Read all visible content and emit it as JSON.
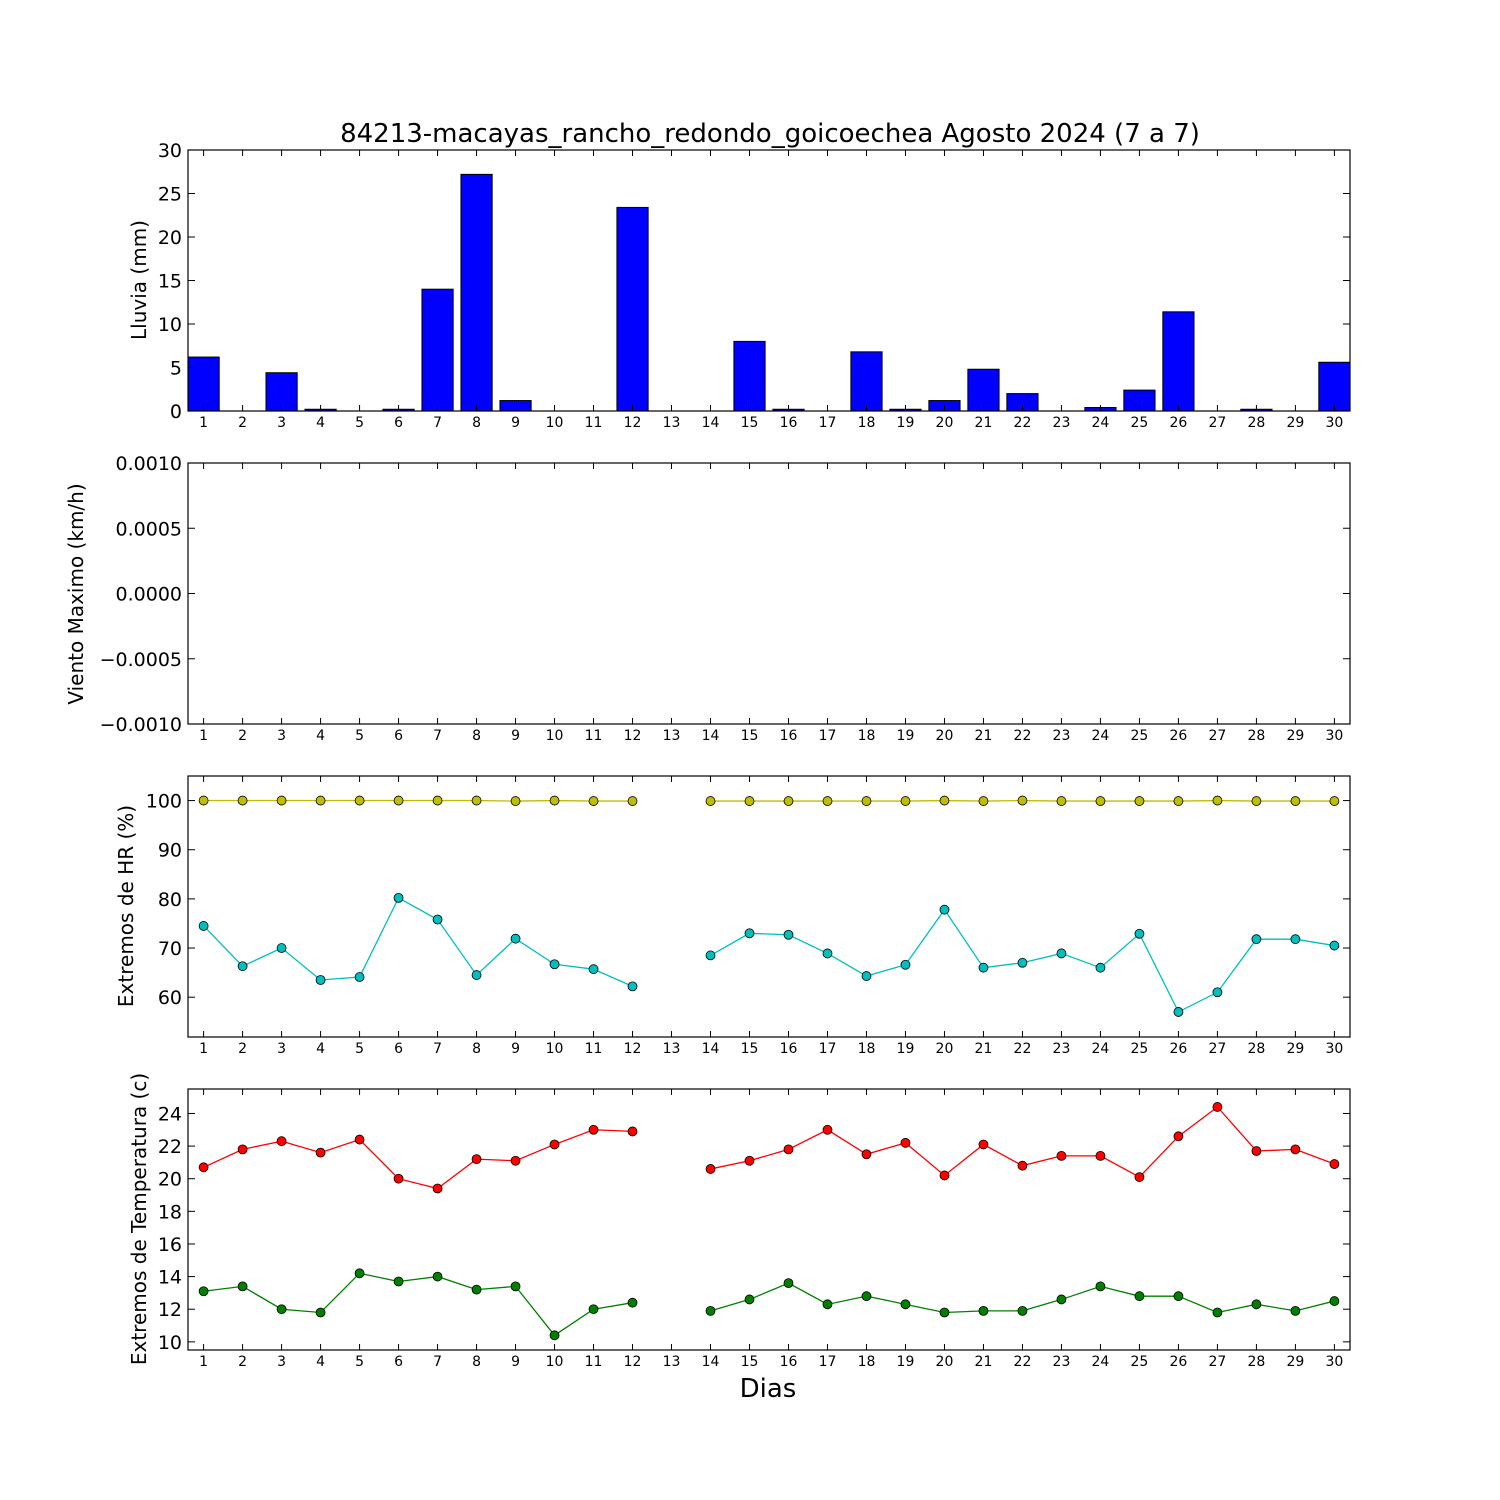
{
  "title": "84213-macayas_rancho_redondo_goicoechea Agosto 2024  (7 a 7)",
  "xlabel": "Dias",
  "chart_data": [
    {
      "type": "bar",
      "ylabel": "Lluvia (mm)",
      "ylim": [
        0,
        30
      ],
      "yticks": [
        "0",
        "5",
        "10",
        "15",
        "20",
        "25",
        "30"
      ],
      "x": [
        1,
        2,
        3,
        4,
        5,
        6,
        7,
        8,
        9,
        10,
        11,
        12,
        13,
        14,
        15,
        16,
        17,
        18,
        19,
        20,
        21,
        22,
        23,
        24,
        25,
        26,
        27,
        28,
        29,
        30
      ],
      "values": [
        6.2,
        0,
        4.4,
        0.2,
        0,
        0.2,
        14.0,
        27.2,
        1.2,
        0,
        0,
        23.4,
        0,
        0,
        8.0,
        0.2,
        0,
        6.8,
        0.2,
        1.2,
        4.8,
        2.0,
        0,
        0.4,
        2.4,
        11.4,
        0,
        0.2,
        0,
        5.6
      ],
      "color": "#0000ff"
    },
    {
      "type": "line",
      "ylabel": "Viento Maximo (km/h)",
      "ylim": [
        -0.001,
        0.001
      ],
      "yticks": [
        "−0.0010",
        "−0.0005",
        "0.0000",
        "0.0005",
        "0.0010"
      ],
      "x": [
        1,
        2,
        3,
        4,
        5,
        6,
        7,
        8,
        9,
        10,
        11,
        12,
        13,
        14,
        15,
        16,
        17,
        18,
        19,
        20,
        21,
        22,
        23,
        24,
        25,
        26,
        27,
        28,
        29,
        30
      ],
      "series": []
    },
    {
      "type": "line",
      "ylabel": "Extremos de HR (%)",
      "ylim": [
        51.9,
        105
      ],
      "yticks": [
        "60",
        "70",
        "80",
        "90",
        "100"
      ],
      "ytick_values": [
        60,
        70,
        80,
        90,
        100
      ],
      "x": [
        1,
        2,
        3,
        4,
        5,
        6,
        7,
        8,
        9,
        10,
        11,
        12,
        13,
        14,
        15,
        16,
        17,
        18,
        19,
        20,
        21,
        22,
        23,
        24,
        25,
        26,
        27,
        28,
        29,
        30
      ],
      "series": [
        {
          "color": "#bfbf00",
          "values": [
            100,
            100,
            100,
            100,
            100,
            100,
            100,
            100,
            99.9,
            100,
            99.9,
            99.9,
            null,
            99.9,
            99.9,
            99.9,
            99.9,
            99.9,
            99.9,
            100,
            99.9,
            100,
            99.9,
            99.9,
            99.9,
            99.9,
            100,
            99.9,
            99.9,
            99.9
          ]
        },
        {
          "color": "#00bfbf",
          "values": [
            74.5,
            66.3,
            70.0,
            63.5,
            64.1,
            80.2,
            75.8,
            64.5,
            71.9,
            66.7,
            65.7,
            62.2,
            null,
            68.5,
            73.0,
            72.7,
            68.9,
            64.3,
            66.6,
            77.8,
            66.0,
            67.0,
            68.9,
            66.0,
            72.9,
            57.0,
            61.0,
            71.8,
            71.8,
            70.5
          ]
        }
      ]
    },
    {
      "type": "line",
      "ylabel": "Extremos de Temperatura (c)",
      "ylim": [
        9.5,
        25.5
      ],
      "yticks": [
        "10",
        "12",
        "14",
        "16",
        "18",
        "20",
        "22",
        "24"
      ],
      "ytick_values": [
        10,
        12,
        14,
        16,
        18,
        20,
        22,
        24
      ],
      "x": [
        1,
        2,
        3,
        4,
        5,
        6,
        7,
        8,
        9,
        10,
        11,
        12,
        13,
        14,
        15,
        16,
        17,
        18,
        19,
        20,
        21,
        22,
        23,
        24,
        25,
        26,
        27,
        28,
        29,
        30
      ],
      "series": [
        {
          "color": "#ff0000",
          "values": [
            20.7,
            21.8,
            22.3,
            21.6,
            22.4,
            20.0,
            19.4,
            21.2,
            21.1,
            22.1,
            23.0,
            22.9,
            null,
            20.6,
            21.1,
            21.8,
            23.0,
            21.5,
            22.2,
            20.2,
            22.1,
            20.8,
            21.4,
            21.4,
            20.1,
            22.6,
            24.4,
            21.7,
            21.8,
            20.9
          ]
        },
        {
          "color": "#008000",
          "values": [
            13.1,
            13.4,
            12.0,
            11.8,
            14.2,
            13.7,
            14.0,
            13.2,
            13.4,
            10.4,
            12.0,
            12.4,
            null,
            11.9,
            12.6,
            13.6,
            12.3,
            12.8,
            12.3,
            11.8,
            11.9,
            11.9,
            12.6,
            13.4,
            12.8,
            12.8,
            11.8,
            12.3,
            11.9,
            12.5
          ]
        }
      ]
    }
  ]
}
